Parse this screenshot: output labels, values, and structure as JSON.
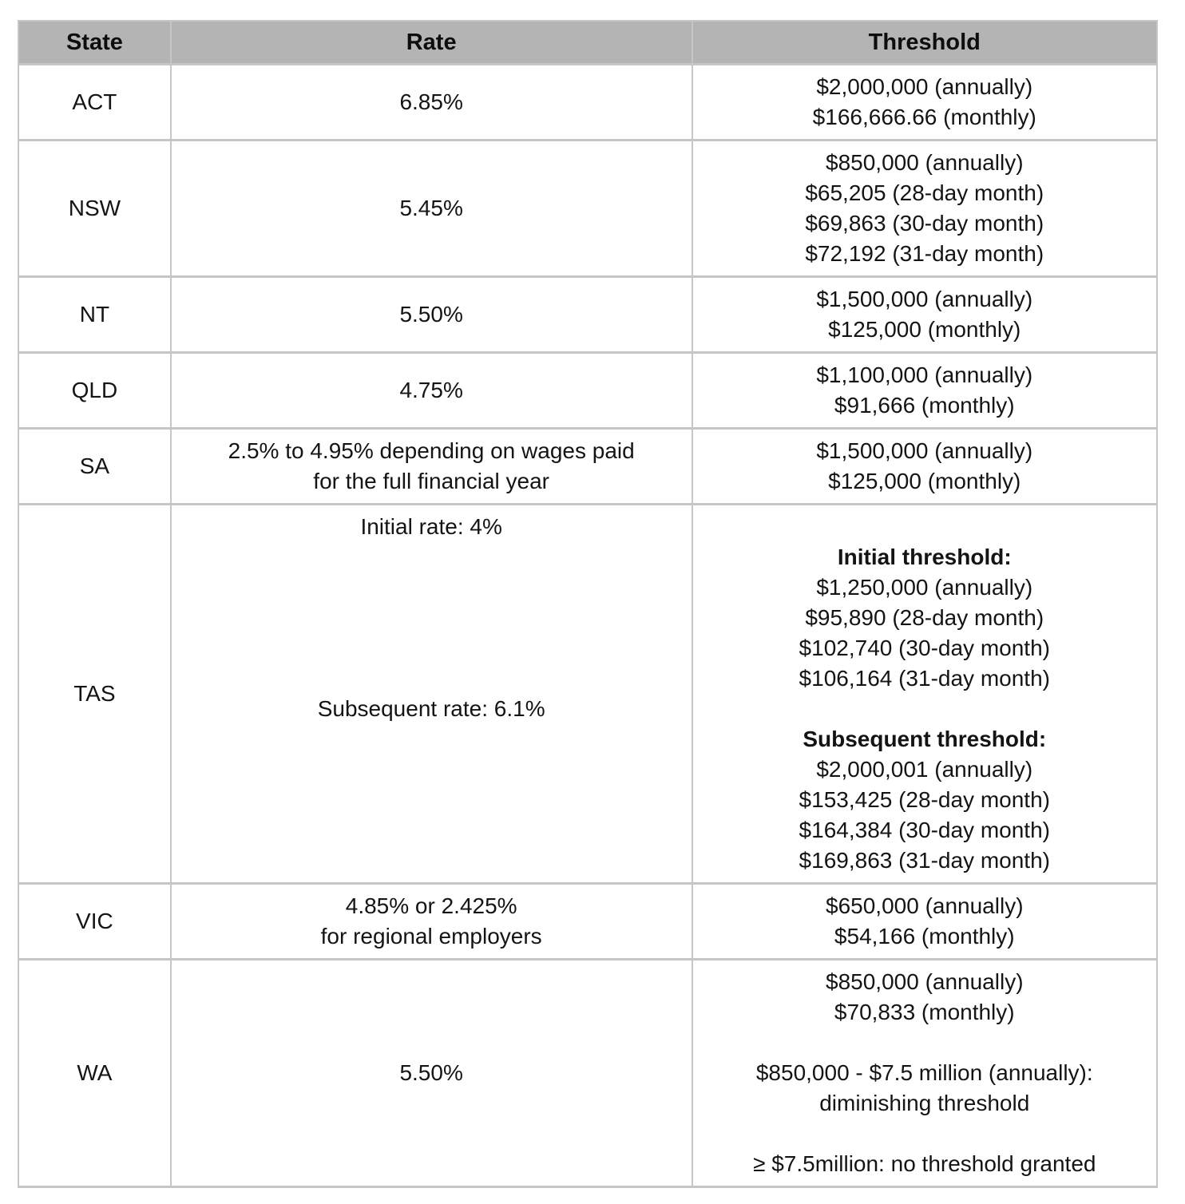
{
  "colors": {
    "header_background": "#b4b4b4",
    "grid_border": "#c6c6c6",
    "text": "#141414",
    "cell_background": "#ffffff"
  },
  "chart_data": {
    "type": "table",
    "columns": [
      "State",
      "Rate",
      "Threshold"
    ],
    "rows": [
      {
        "state": "ACT",
        "rate_lines": [
          {
            "text": "6.85%"
          }
        ],
        "threshold_lines": [
          {
            "text": "$2,000,000 (annually)"
          },
          {
            "text": "$166,666.66 (monthly)"
          }
        ]
      },
      {
        "state": "NSW",
        "rate_lines": [
          {
            "text": "5.45%"
          }
        ],
        "threshold_lines": [
          {
            "text": "$850,000 (annually)"
          },
          {
            "text": "$65,205 (28-day month)"
          },
          {
            "text": "$69,863 (30-day month)"
          },
          {
            "text": "$72,192 (31-day month)"
          }
        ]
      },
      {
        "state": "NT",
        "rate_lines": [
          {
            "text": "5.50%"
          }
        ],
        "threshold_lines": [
          {
            "text": "$1,500,000 (annually)"
          },
          {
            "text": "$125,000 (monthly)"
          }
        ]
      },
      {
        "state": "QLD",
        "rate_lines": [
          {
            "text": "4.75%"
          }
        ],
        "threshold_lines": [
          {
            "text": "$1,100,000 (annually)"
          },
          {
            "text": "$91,666 (monthly)"
          }
        ]
      },
      {
        "state": "SA",
        "rate_lines": [
          {
            "text": "2.5% to 4.95% depending on wages paid"
          },
          {
            "text": "for the full financial year"
          }
        ],
        "threshold_lines": [
          {
            "text": "$1,500,000 (annually)"
          },
          {
            "text": "$125,000 (monthly)"
          }
        ]
      },
      {
        "state": "TAS",
        "rate_lines": [
          {
            "text": "Initial rate: 4%"
          },
          {
            "text": ""
          },
          {
            "text": ""
          },
          {
            "text": ""
          },
          {
            "text": ""
          },
          {
            "text": ""
          },
          {
            "text": "Subsequent rate: 6.1%"
          },
          {
            "text": ""
          },
          {
            "text": ""
          },
          {
            "text": ""
          },
          {
            "text": ""
          },
          {
            "text": ""
          }
        ],
        "threshold_lines": [
          {
            "text": ""
          },
          {
            "text": "Initial threshold:",
            "bold": true
          },
          {
            "text": "$1,250,000 (annually)"
          },
          {
            "text": "$95,890 (28-day month)"
          },
          {
            "text": "$102,740 (30-day month)"
          },
          {
            "text": "$106,164 (31-day month)"
          },
          {
            "text": ""
          },
          {
            "text": "Subsequent threshold:",
            "bold": true
          },
          {
            "text": "$2,000,001 (annually)"
          },
          {
            "text": "$153,425 (28-day month)"
          },
          {
            "text": "$164,384 (30-day month)"
          },
          {
            "text": "$169,863 (31-day month)"
          }
        ]
      },
      {
        "state": "VIC",
        "rate_lines": [
          {
            "text": "4.85% or 2.425%"
          },
          {
            "text": "for regional employers"
          }
        ],
        "threshold_lines": [
          {
            "text": "$650,000 (annually)"
          },
          {
            "text": "$54,166 (monthly)"
          }
        ]
      },
      {
        "state": "WA",
        "rate_lines": [
          {
            "text": "5.50%"
          }
        ],
        "threshold_lines": [
          {
            "text": "$850,000 (annually)"
          },
          {
            "text": "$70,833 (monthly)"
          },
          {
            "text": ""
          },
          {
            "text": "$850,000 - $7.5 million (annually):"
          },
          {
            "text": "diminishing threshold"
          },
          {
            "text": ""
          },
          {
            "text": "≥ $7.5million: no threshold granted"
          }
        ]
      }
    ]
  }
}
